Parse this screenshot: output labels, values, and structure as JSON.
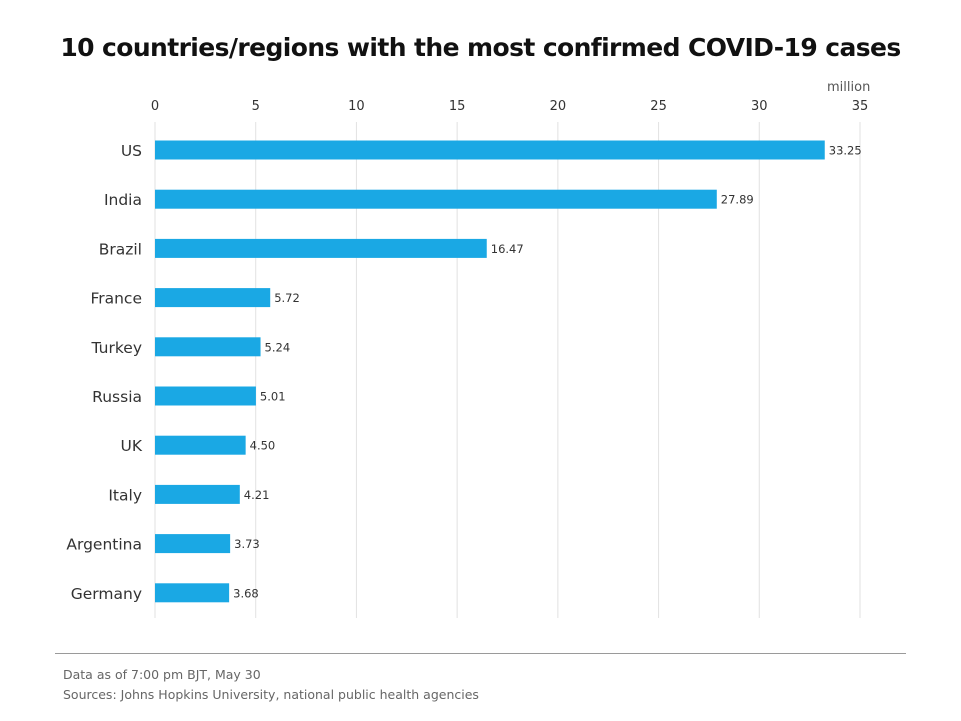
{
  "page": {
    "title": "10 countries/regions with the most confirmed COVID-19 cases",
    "date_note": "Data as of 7:00 pm BJT, May 30",
    "source_note": "Sources: Johns Hopkins University, national public health agencies",
    "logo_text": "",
    "unit": "million"
  },
  "colors": {
    "bar": "#1aa8e4",
    "grid": "#e2e2e2",
    "axis_text": "#333333",
    "label_text": "#333333"
  },
  "chart_data": {
    "type": "bar",
    "orientation": "horizontal",
    "title": "10 countries/regions with the most confirmed COVID-19 cases",
    "xlabel": "million",
    "ylabel": "",
    "xlim": [
      0,
      35
    ],
    "x_ticks": [
      0,
      5,
      10,
      15,
      20,
      25,
      30,
      35
    ],
    "x_tick_labels": [
      "0",
      "5",
      "10",
      "15",
      "20",
      "25",
      "30",
      "35"
    ],
    "axis_position": "top",
    "grid": true,
    "categories": [
      "US",
      "India",
      "Brazil",
      "France",
      "Turkey",
      "Russia",
      "UK",
      "Italy",
      "Argentina",
      "Germany"
    ],
    "values": [
      33.25,
      27.89,
      16.47,
      5.72,
      5.24,
      5.01,
      4.5,
      4.21,
      3.73,
      3.68
    ],
    "value_labels": [
      "33.25",
      "27.89",
      "16.47",
      "5.72",
      "5.24",
      "5.01",
      "4.50",
      "4.21",
      "3.73",
      "3.68"
    ]
  }
}
